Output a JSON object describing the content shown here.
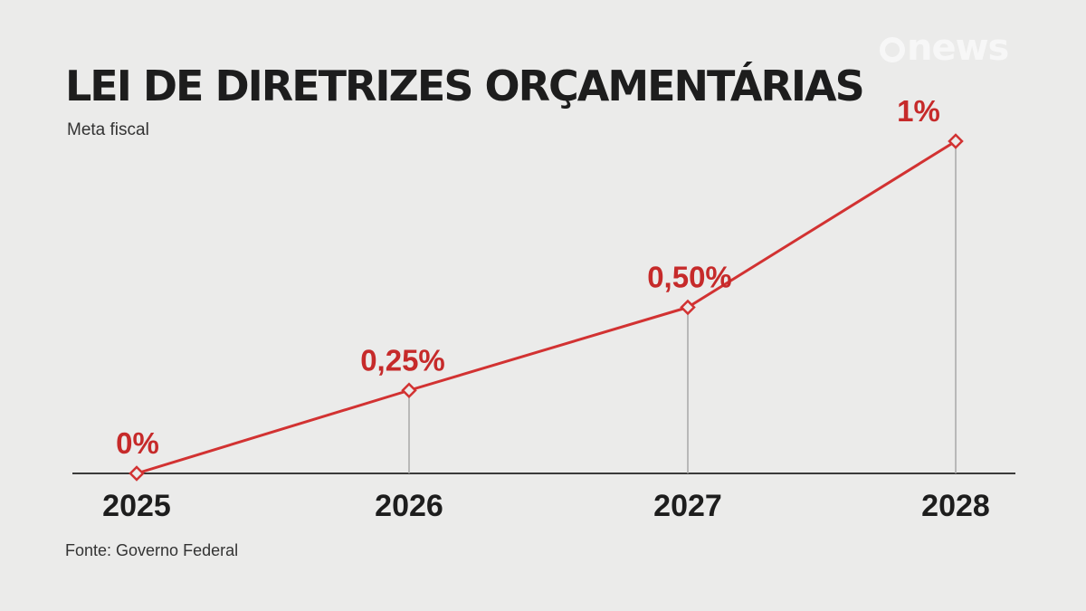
{
  "brand": {
    "logo_text": "news"
  },
  "header": {
    "title": "LEI DE DIRETRIZES ORÇAMENTÁRIAS",
    "subtitle": "Meta fiscal"
  },
  "footer": {
    "source": "Fonte: Governo Federal"
  },
  "colors": {
    "line": "#d23232",
    "label": "#c62a2a",
    "axis": "#3a3a3a",
    "guide": "#a8a8a8",
    "background": "#ebebea"
  },
  "chart_data": {
    "type": "line",
    "title": "LEI DE DIRETRIZES ORÇAMENTÁRIAS",
    "subtitle": "Meta fiscal",
    "categories": [
      "2025",
      "2026",
      "2027",
      "2028"
    ],
    "values": [
      0,
      0.25,
      0.5,
      1
    ],
    "value_labels": [
      "0%",
      "0,25%",
      "0,50%",
      "1%"
    ],
    "ylim": [
      0,
      1
    ],
    "grid": false,
    "legend": "none",
    "marker": "diamond"
  }
}
